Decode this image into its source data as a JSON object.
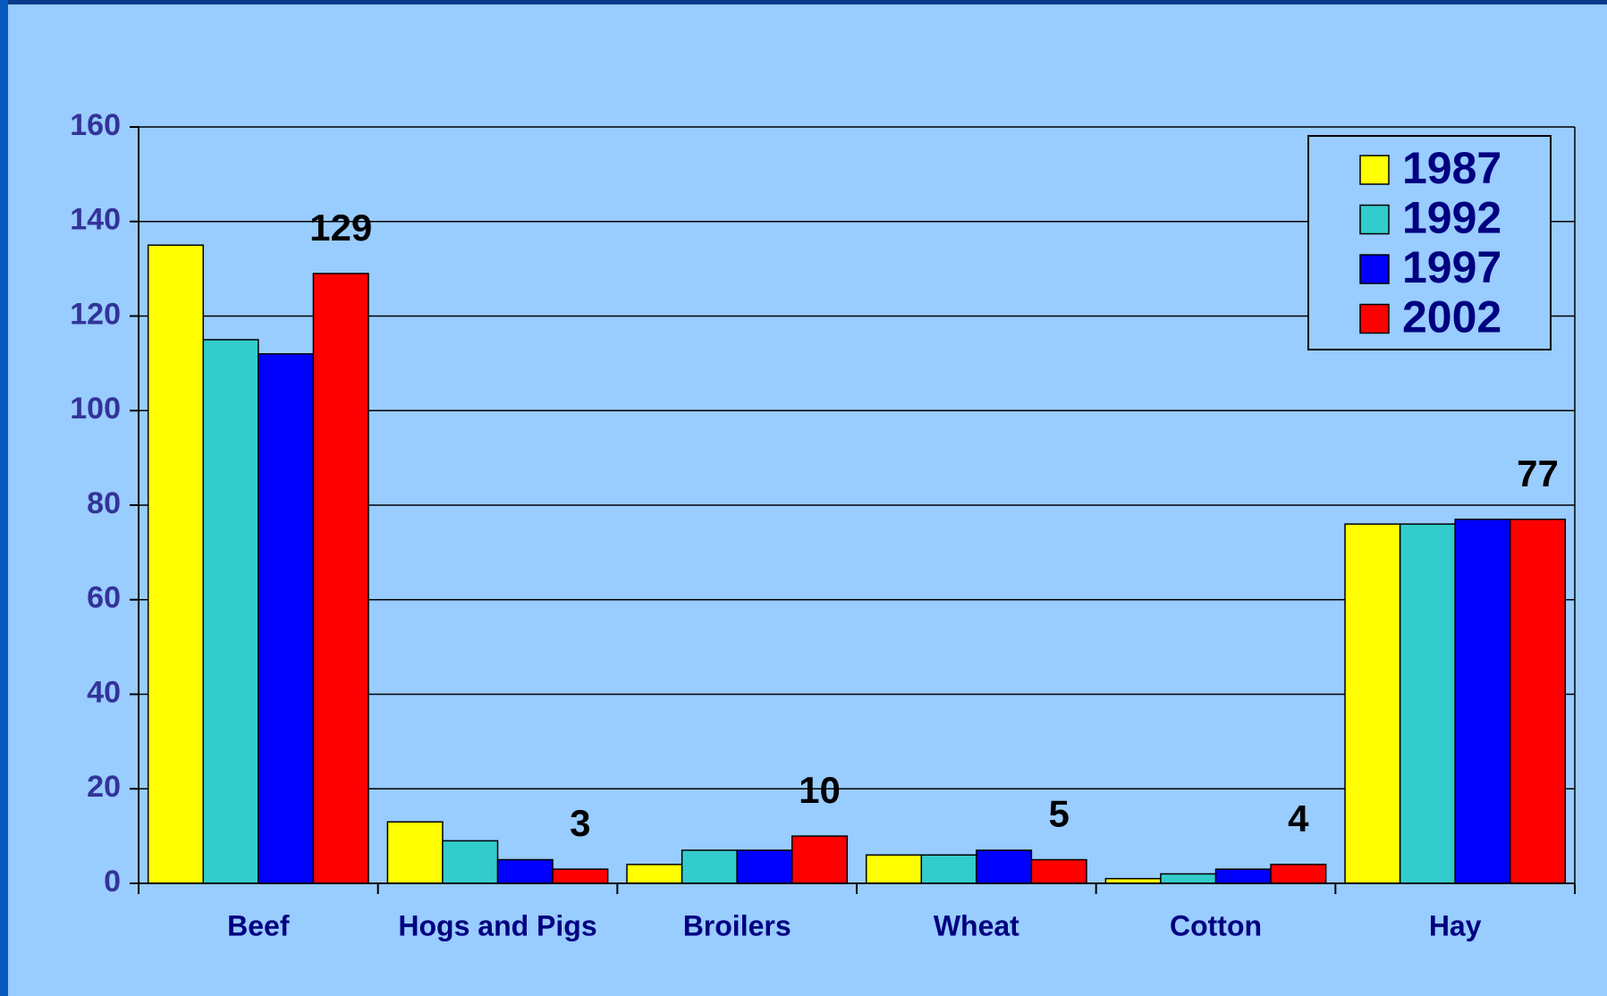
{
  "chart_data": {
    "type": "bar",
    "categories": [
      "Beef",
      "Hogs and Pigs",
      "Broilers",
      "Wheat",
      "Cotton",
      "Hay"
    ],
    "series": [
      {
        "name": "1987",
        "color": "#ffff00",
        "values": [
          135,
          13,
          4,
          6,
          1,
          76
        ]
      },
      {
        "name": "1992",
        "color": "#33cccc",
        "values": [
          115,
          9,
          7,
          6,
          2,
          76
        ]
      },
      {
        "name": "1997",
        "color": "#0000ff",
        "values": [
          112,
          5,
          7,
          7,
          3,
          77
        ]
      },
      {
        "name": "2002",
        "color": "#ff0000",
        "values": [
          129,
          3,
          10,
          5,
          4,
          77
        ],
        "show_labels": true
      }
    ],
    "ylim": [
      0,
      160
    ],
    "yticks": [
      0,
      20,
      40,
      60,
      80,
      100,
      120,
      140,
      160
    ],
    "grid": true,
    "legend": "top-right"
  }
}
